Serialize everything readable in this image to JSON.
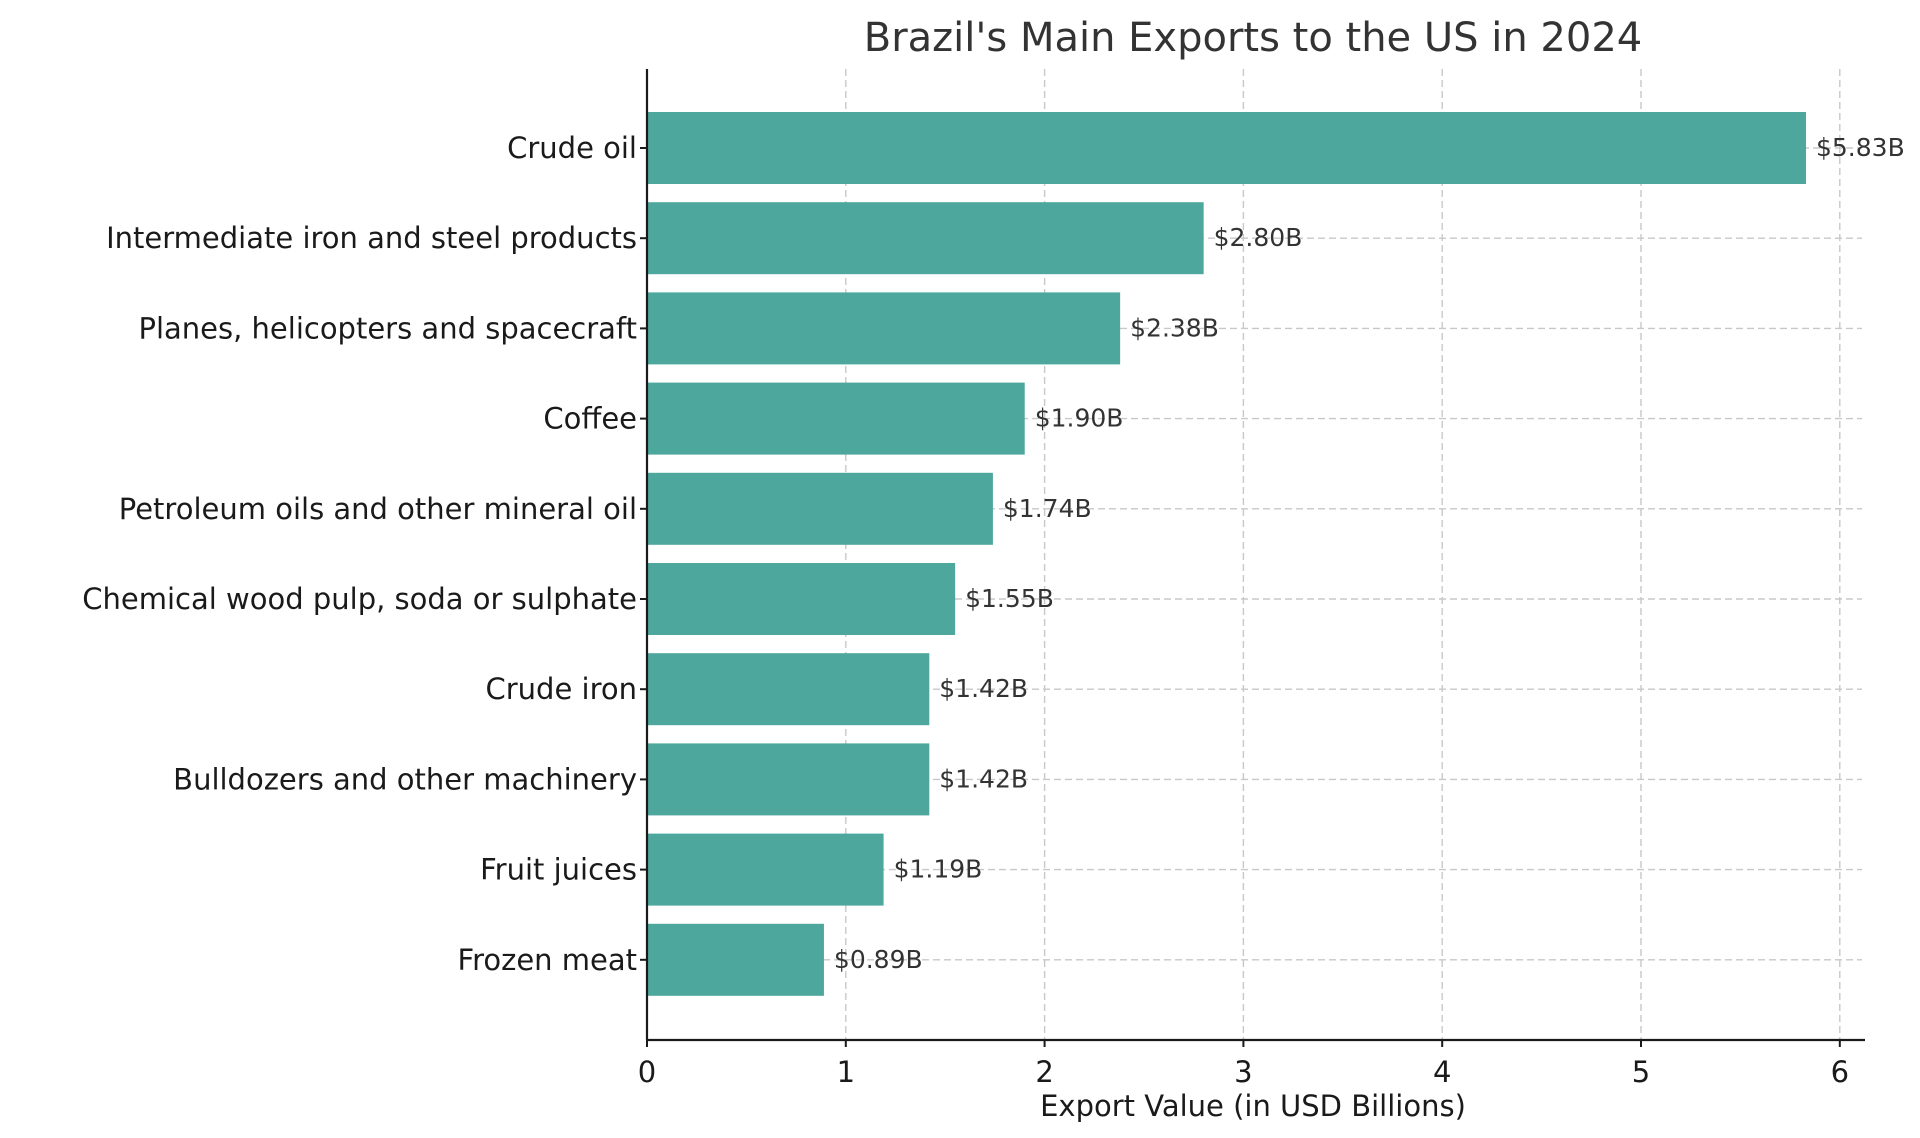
{
  "chart_data": {
    "type": "bar",
    "orientation": "horizontal",
    "title": "Brazil's Main Exports to the US in 2024",
    "xlabel": "Export Value (in USD Billions)",
    "ylabel": "",
    "xlim": [
      0,
      6.15
    ],
    "xticks": [
      0,
      1,
      2,
      3,
      4,
      5,
      6
    ],
    "xtick_labels": [
      "0",
      "1",
      "2",
      "3",
      "4",
      "5",
      "6"
    ],
    "grid": true,
    "bar_color": "#4da79c",
    "categories": [
      "Crude oil",
      "Intermediate iron and steel products",
      "Planes, helicopters and spacecraft",
      "Coffee",
      "Petroleum oils and other mineral oil",
      "Chemical wood pulp, soda or sulphate",
      "Crude iron",
      "Bulldozers and other machinery",
      "Fruit juices",
      "Frozen meat"
    ],
    "values": [
      5.83,
      2.8,
      2.38,
      1.9,
      1.74,
      1.55,
      1.42,
      1.42,
      1.19,
      0.89
    ],
    "value_labels": [
      "$5.83B",
      "$2.80B",
      "$2.38B",
      "$1.90B",
      "$1.74B",
      "$1.55B",
      "$1.42B",
      "$1.42B",
      "$1.19B",
      "$0.89B"
    ]
  }
}
